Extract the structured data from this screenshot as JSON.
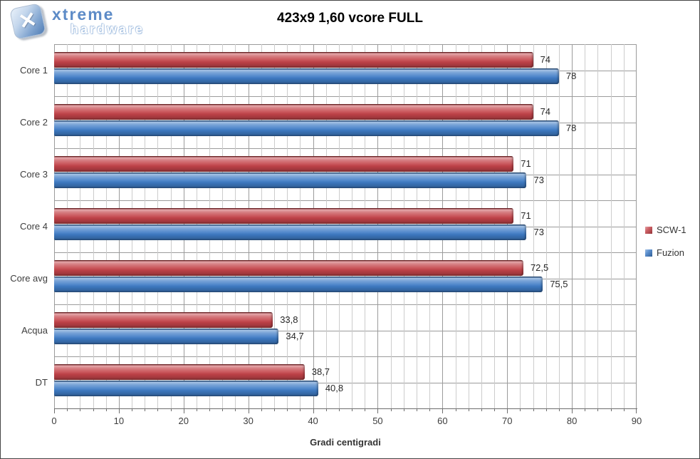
{
  "logo": {
    "brand_top": "xtreme",
    "brand_bottom": "hardware",
    "x_glyph": "✕"
  },
  "title": "423x9 1,60 vcore FULL",
  "colors": {
    "series_red": "#c4444a",
    "series_blue": "#3f7cc6",
    "grid_minor": "#cccccc",
    "grid_major": "#9b9b9b",
    "axis": "#6e6e6e"
  },
  "chart_data": {
    "type": "bar",
    "orientation": "horizontal",
    "title": "423x9 1,60 vcore FULL",
    "xlabel": "Gradi centigradi",
    "ylabel": "",
    "categories": [
      "Core 1",
      "Core 2",
      "Core 3",
      "Core 4",
      "Core avg",
      "Acqua",
      "DT"
    ],
    "series": [
      {
        "name": "SCW-1",
        "color": "#c4444a",
        "values": [
          74,
          74,
          71,
          71,
          72.5,
          33.8,
          38.7
        ],
        "value_labels": [
          "74",
          "74",
          "71",
          "71",
          "72,5",
          "33,8",
          "38,7"
        ]
      },
      {
        "name": "Fuzion",
        "color": "#3f7cc6",
        "values": [
          78,
          78,
          73,
          73,
          75.5,
          34.7,
          40.8
        ],
        "value_labels": [
          "78",
          "78",
          "73",
          "73",
          "75,5",
          "34,7",
          "40,8"
        ]
      }
    ],
    "xlim": [
      0,
      90
    ],
    "x_major_ticks": [
      0,
      10,
      20,
      30,
      40,
      50,
      60,
      70,
      80,
      90
    ],
    "x_minor_step": 2,
    "grid": true,
    "legend_position": "right"
  }
}
